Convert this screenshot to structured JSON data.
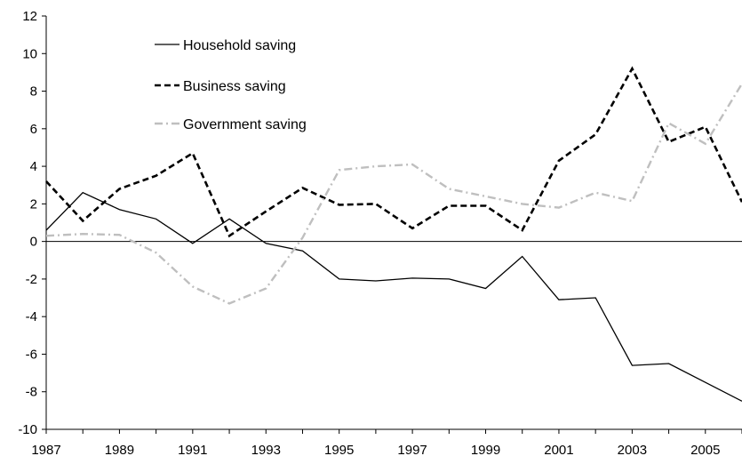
{
  "chart_data": {
    "type": "line",
    "title": "",
    "xlabel": "",
    "ylabel": "",
    "xlim": [
      1987,
      2006
    ],
    "ylim": [
      -10,
      12
    ],
    "x_ticks": [
      "1987",
      "1989",
      "1991",
      "1993",
      "1995",
      "1997",
      "1999",
      "2001",
      "2003",
      "2005"
    ],
    "y_ticks": [
      "12",
      "10",
      "8",
      "6",
      "4",
      "2",
      "0",
      "-2",
      "-4",
      "-6",
      "-8",
      "-10"
    ],
    "grid": false,
    "legend_position": "top-left",
    "x": [
      1987,
      1988,
      1989,
      1990,
      1991,
      1992,
      1993,
      1994,
      1995,
      1996,
      1997,
      1998,
      1999,
      2000,
      2001,
      2002,
      2003,
      2004,
      2005,
      2006
    ],
    "series": [
      {
        "name": "Household saving",
        "style": "solid",
        "color": "#000000",
        "values": [
          0.6,
          2.6,
          1.7,
          1.2,
          -0.1,
          1.2,
          -0.1,
          -0.5,
          -2.0,
          -2.1,
          -1.95,
          -2.0,
          -2.5,
          -0.8,
          -3.1,
          -3.0,
          -6.6,
          -6.5,
          -7.5,
          -8.5
        ]
      },
      {
        "name": "Business saving",
        "style": "dashed",
        "color": "#000000",
        "values": [
          3.2,
          1.1,
          2.8,
          3.5,
          4.7,
          0.3,
          1.6,
          2.85,
          1.95,
          2.0,
          0.7,
          1.9,
          1.9,
          0.6,
          4.3,
          5.7,
          9.2,
          5.3,
          6.1,
          2.1
        ]
      },
      {
        "name": "Government saving",
        "style": "dashdot",
        "color": "#bfbfbf",
        "values": [
          0.3,
          0.4,
          0.35,
          -0.6,
          -2.4,
          -3.3,
          -2.5,
          0.2,
          3.8,
          4.0,
          4.1,
          2.8,
          2.4,
          2.0,
          1.8,
          2.6,
          2.15,
          6.3,
          5.2,
          8.4
        ]
      }
    ]
  }
}
